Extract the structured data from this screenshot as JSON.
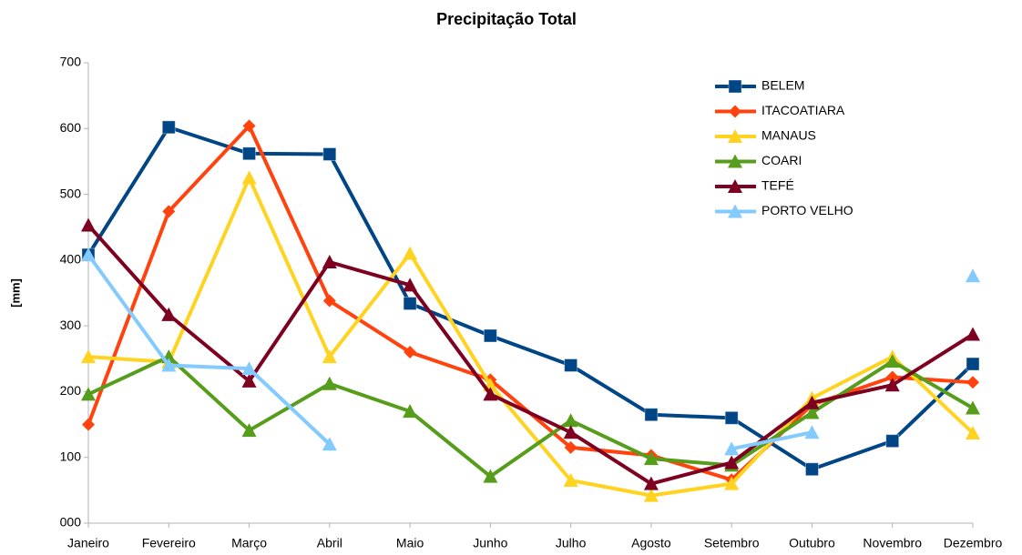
{
  "chart_data": {
    "type": "line",
    "title": "Precipitação Total",
    "y_label": "[mm]",
    "categories": [
      "Janeiro",
      "Fevereiro",
      "Março",
      "Abril",
      "Maio",
      "Junho",
      "Julho",
      "Agosto",
      "Setembro",
      "Outubro",
      "Novembro",
      "Dezembro"
    ],
    "ylim": [
      0,
      700
    ],
    "yticks": [
      {
        "value": 0,
        "label": "000"
      },
      100,
      200,
      300,
      400,
      500,
      600,
      700
    ],
    "grid": false,
    "legend": "upper right",
    "series": [
      {
        "name": "BELEM",
        "color": "#004586",
        "marker": "square",
        "values": [
          408,
          602,
          562,
          561,
          334,
          285,
          240,
          165,
          160,
          82,
          125,
          242
        ]
      },
      {
        "name": "ITACOATIARA",
        "color": "#ff420e",
        "marker": "diamond",
        "values": [
          150,
          474,
          604,
          338,
          260,
          218,
          115,
          103,
          66,
          180,
          222,
          214
        ]
      },
      {
        "name": "MANAUS",
        "color": "#ffd320",
        "marker": "triangle",
        "values": [
          253,
          245,
          525,
          253,
          410,
          210,
          65,
          42,
          60,
          190,
          253,
          137
        ]
      },
      {
        "name": "COARI",
        "color": "#579d1c",
        "marker": "triangle",
        "values": [
          196,
          253,
          141,
          212,
          170,
          71,
          156,
          98,
          88,
          168,
          246,
          175
        ]
      },
      {
        "name": "TEFÉ",
        "color": "#7e0021",
        "marker": "triangle",
        "values": [
          453,
          317,
          216,
          397,
          362,
          196,
          138,
          60,
          92,
          183,
          210,
          287
        ]
      },
      {
        "name": "PORTO VELHO",
        "color": "#83caff",
        "marker": "triangle",
        "values": [
          408,
          240,
          235,
          120,
          null,
          null,
          null,
          null,
          113,
          138,
          null,
          376
        ]
      }
    ]
  }
}
